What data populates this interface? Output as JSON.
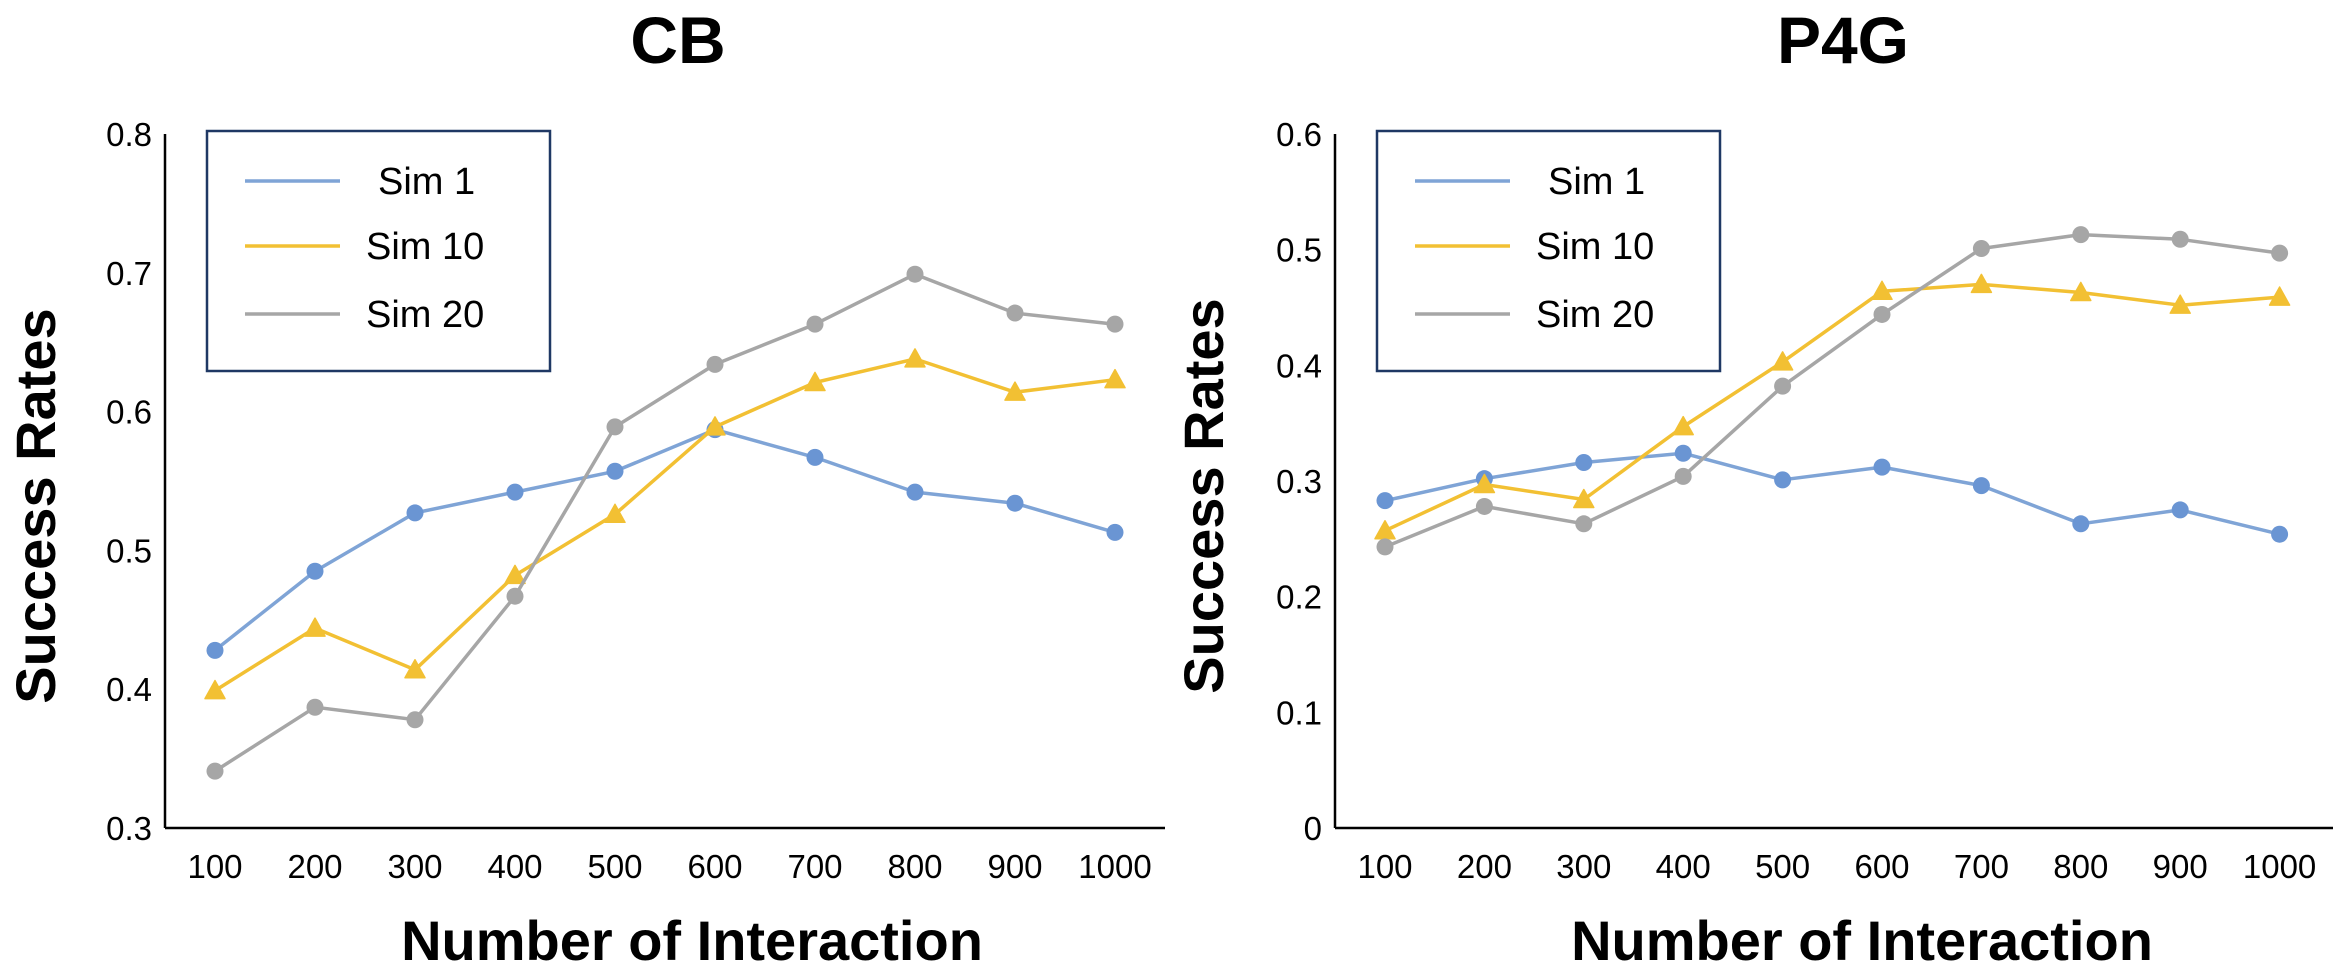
{
  "figure": {
    "charts": [
      {
        "id": "cb",
        "title": "CB",
        "xlabel": "Number of Interaction",
        "ylabel": "Success Rates",
        "ylim": [
          0.3,
          0.8
        ],
        "yticks": [
          "0.3",
          "0.4",
          "0.5",
          "0.6",
          "0.7",
          "0.8"
        ]
      },
      {
        "id": "p4g",
        "title": "P4G",
        "xlabel": "Number of Interaction",
        "ylabel": "Success Rates",
        "ylim": [
          0,
          0.6
        ],
        "yticks": [
          "0",
          "0.1",
          "0.2",
          "0.3",
          "0.4",
          "0.5",
          "0.6"
        ]
      }
    ]
  },
  "chart_data": [
    {
      "type": "line",
      "title": "CB",
      "xlabel": "Number of Interaction",
      "ylabel": "Success Rates",
      "categories": [
        "100",
        "200",
        "300",
        "400",
        "500",
        "600",
        "700",
        "800",
        "900",
        "1000"
      ],
      "ylim": [
        0.3,
        0.8
      ],
      "legend_position": "top-left",
      "series": [
        {
          "name": "Sim 1",
          "color": "#7fa4d6",
          "marker_color": "#6a95d3",
          "marker": "circle",
          "values": [
            0.428,
            0.485,
            0.527,
            0.542,
            0.557,
            0.587,
            0.567,
            0.542,
            0.534,
            0.513
          ]
        },
        {
          "name": "Sim 10",
          "color": "#f2c033",
          "marker_color": "#f2c033",
          "marker": "triangle",
          "values": [
            0.399,
            0.444,
            0.414,
            0.482,
            0.526,
            0.589,
            0.621,
            0.638,
            0.614,
            0.623
          ]
        },
        {
          "name": "Sim 20",
          "color": "#a6a6a6",
          "marker_color": "#a6a6a6",
          "marker": "circle",
          "values": [
            0.341,
            0.387,
            0.378,
            0.467,
            0.589,
            0.634,
            0.663,
            0.699,
            0.671,
            0.663
          ]
        }
      ]
    },
    {
      "type": "line",
      "title": "P4G",
      "xlabel": "Number of Interaction",
      "ylabel": "Success Rates",
      "categories": [
        "100",
        "200",
        "300",
        "400",
        "500",
        "600",
        "700",
        "800",
        "900",
        "1000"
      ],
      "ylim": [
        0,
        0.6
      ],
      "legend_position": "top-left",
      "series": [
        {
          "name": "Sim 1",
          "color": "#7fa4d6",
          "marker_color": "#6a95d3",
          "marker": "circle",
          "values": [
            0.283,
            0.302,
            0.316,
            0.324,
            0.301,
            0.312,
            0.296,
            0.263,
            0.275,
            0.254
          ]
        },
        {
          "name": "Sim 10",
          "color": "#f2c033",
          "marker_color": "#f2c033",
          "marker": "triangle",
          "values": [
            0.257,
            0.297,
            0.284,
            0.347,
            0.403,
            0.464,
            0.47,
            0.463,
            0.452,
            0.459
          ]
        },
        {
          "name": "Sim 20",
          "color": "#a6a6a6",
          "marker_color": "#a6a6a6",
          "marker": "circle",
          "values": [
            0.243,
            0.278,
            0.263,
            0.304,
            0.382,
            0.444,
            0.501,
            0.513,
            0.509,
            0.497
          ]
        }
      ]
    }
  ]
}
